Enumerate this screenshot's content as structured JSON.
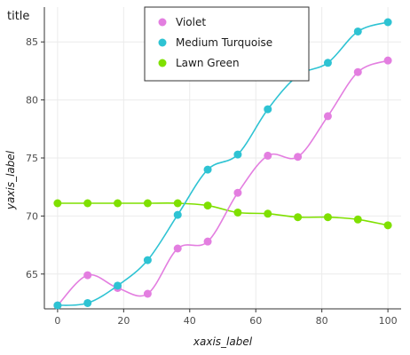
{
  "chart_data": {
    "type": "line",
    "title": "title",
    "xlabel": "xaxis_label",
    "ylabel": "yaxis_label",
    "xlim": [
      -4,
      104
    ],
    "ylim": [
      62,
      88
    ],
    "xticks": [
      0,
      20,
      40,
      60,
      80,
      100
    ],
    "yticks": [
      65,
      70,
      75,
      80,
      85
    ],
    "grid": true,
    "legend_position": "top-center",
    "series": [
      {
        "name": "Lawn Green",
        "color": "#7fe000",
        "x": [
          0,
          9.09,
          18.18,
          27.27,
          36.36,
          45.45,
          54.55,
          63.64,
          72.73,
          81.82,
          90.91,
          100
        ],
        "y": [
          71.1,
          71.1,
          71.1,
          71.1,
          71.1,
          70.9,
          70.3,
          70.2,
          69.9,
          69.9,
          69.7,
          69.2
        ]
      },
      {
        "name": "Violet",
        "color": "#e37ee0",
        "x": [
          0,
          9.09,
          18.18,
          27.27,
          36.36,
          45.45,
          54.55,
          63.64,
          72.73,
          81.82,
          90.91,
          100
        ],
        "y": [
          62.3,
          64.9,
          63.8,
          63.3,
          67.2,
          67.8,
          72.0,
          75.2,
          75.1,
          78.6,
          82.4,
          83.4
        ]
      },
      {
        "name": "Medium Turquoise",
        "color": "#2ec3d3",
        "x": [
          0,
          9.09,
          18.18,
          27.27,
          36.36,
          45.45,
          54.55,
          63.64,
          72.73,
          81.82,
          90.91,
          100
        ],
        "y": [
          62.3,
          62.5,
          64.0,
          66.2,
          70.1,
          74.0,
          75.3,
          79.2,
          82.1,
          83.2,
          85.9,
          86.7
        ]
      }
    ]
  }
}
